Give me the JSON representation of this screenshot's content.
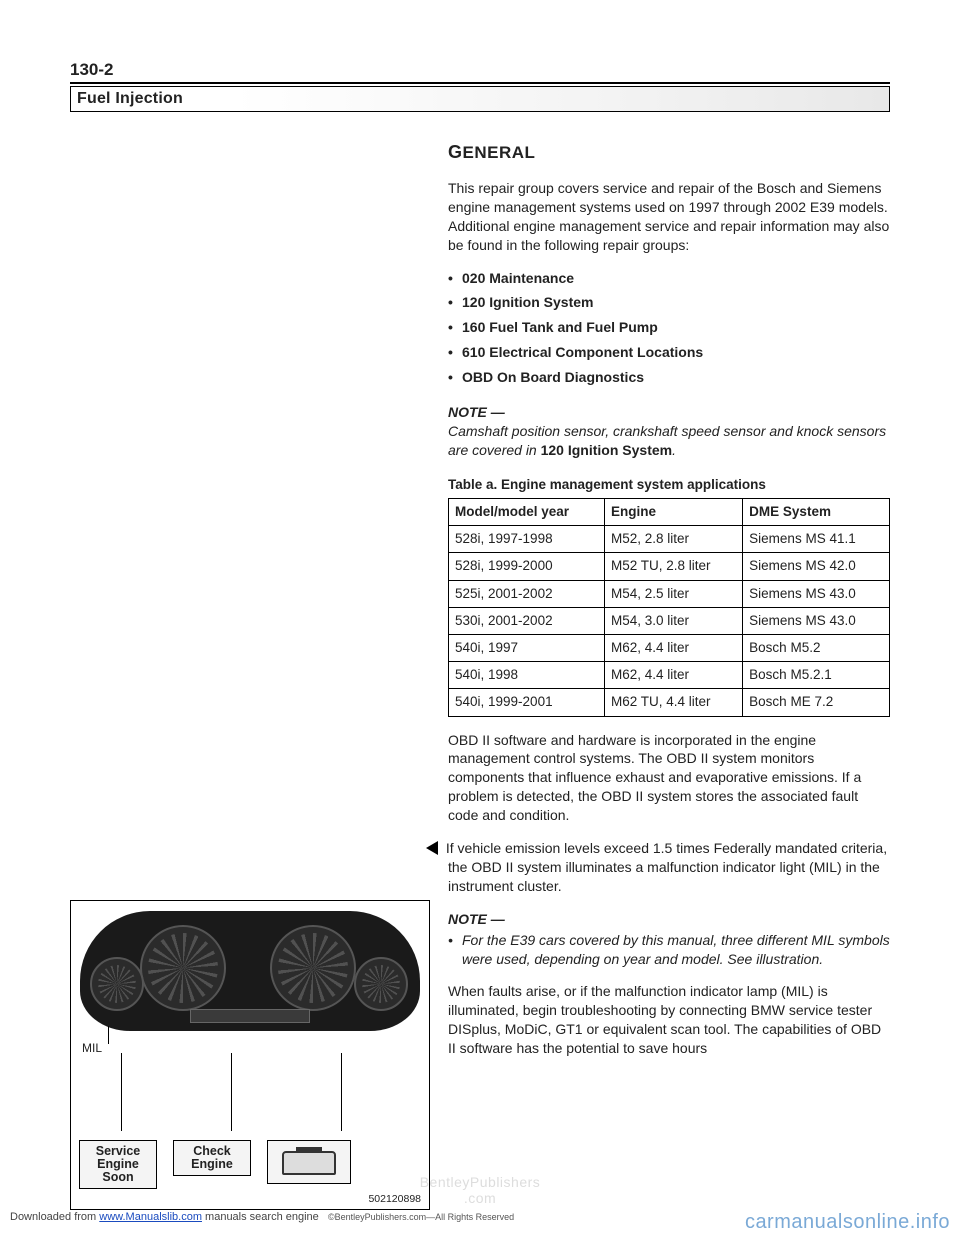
{
  "page_number": "130-2",
  "section_title": "Fuel Injection",
  "heading_general": "GENERAL",
  "intro_para": "This repair group covers service and repair of the Bosch and Siemens engine management systems used on 1997 through 2002 E39 models. Additional engine management service and repair information may also be found in the following repair groups:",
  "bullets": [
    "020 Maintenance",
    "120 Ignition System",
    "160 Fuel Tank and Fuel Pump",
    "610 Electrical Component Locations",
    "OBD On Board Diagnostics"
  ],
  "note1_head": "NOTE —",
  "note1_body_pre": "Camshaft position sensor, crankshaft speed sensor and knock sensors are covered in ",
  "note1_body_strong": "120 Ignition System",
  "note1_body_post": ".",
  "table_caption": "Table a.  Engine management system applications",
  "table_headers": [
    "Model/model year",
    "Engine",
    "DME System"
  ],
  "table_rows": [
    [
      "528i, 1997-1998",
      "M52, 2.8 liter",
      "Siemens MS 41.1"
    ],
    [
      "528i, 1999-2000",
      "M52 TU, 2.8 liter",
      "Siemens MS 42.0"
    ],
    [
      "525i, 2001-2002",
      "M54, 2.5 liter",
      "Siemens MS 43.0"
    ],
    [
      "530i, 2001-2002",
      "M54, 3.0 liter",
      "Siemens MS 43.0"
    ],
    [
      "540i, 1997",
      "M62, 4.4 liter",
      "Bosch M5.2"
    ],
    [
      "540i, 1998",
      "M62, 4.4 liter",
      "Bosch M5.2.1"
    ],
    [
      "540i, 1999-2001",
      "M62 TU, 4.4 liter",
      "Bosch ME 7.2"
    ]
  ],
  "obd_para": "OBD II software and hardware is incorporated in the engine management control systems. The OBD II system monitors components that influence exhaust and evaporative emissions. If a problem is detected, the OBD II system stores the associated fault code and condition.",
  "mil_para": "If vehicle emission levels exceed 1.5 times Federally mandated criteria, the OBD II system illuminates a malfunction indicator light (MIL) in the instrument cluster.",
  "note2_head": "NOTE —",
  "note2_body": "For the E39 cars covered by this manual, three different MIL symbols were used, depending on year and model. See illustration.",
  "faults_para": "When faults arise, or if the malfunction indicator lamp (MIL) is illuminated, begin troubleshooting by connecting BMW service tester DISplus, MoDiC, GT1 or equivalent scan tool. The capabilities of OBD II software has the potential to save hours",
  "illus": {
    "mil_label": "MIL",
    "warn1": "Service\nEngine\nSoon",
    "warn2": "Check\nEngine",
    "fig_num": "502120898"
  },
  "watermark_bp": "BentleyPublishers\n.com",
  "footer_dl_pre": "Downloaded from ",
  "footer_dl_link": "www.Manualslib.com",
  "footer_dl_post": " manuals search engine",
  "footer_rights": "©BentleyPublishers.com—All Rights Reserved",
  "footer_site": "carmanualsonline.info"
}
